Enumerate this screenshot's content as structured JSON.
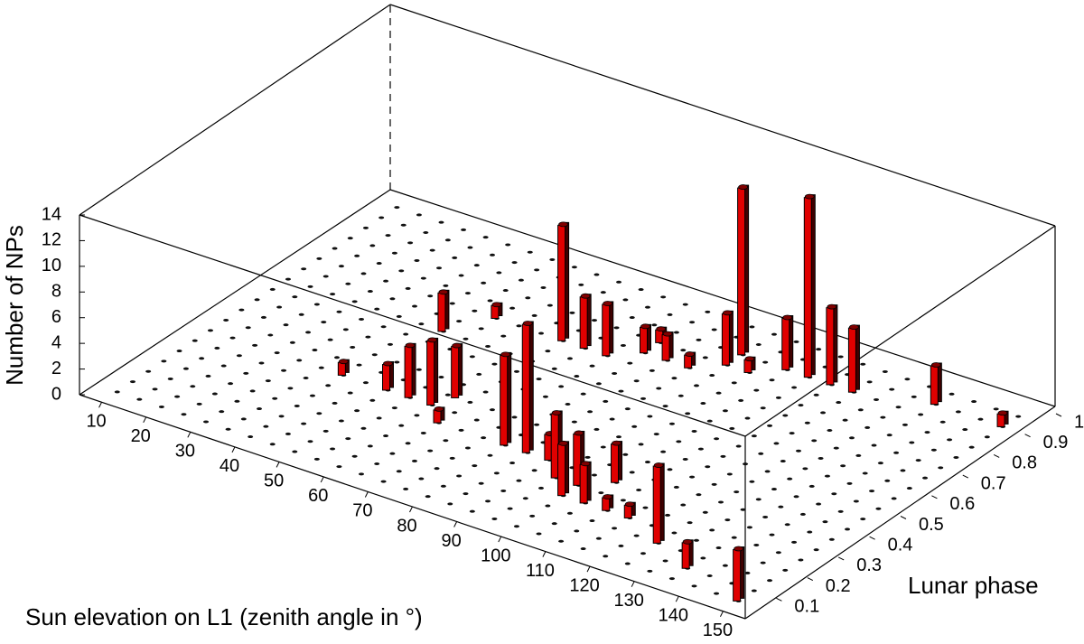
{
  "chart_data": {
    "type": "bar3d",
    "xlabel": "Sun elevation on L1 (zenith angle in °)",
    "ylabel": "Lunar phase",
    "zlabel": "Number of NPs",
    "color": "#e00000",
    "xlim": [
      5,
      155
    ],
    "xticks": [
      10,
      20,
      30,
      40,
      50,
      60,
      70,
      80,
      90,
      100,
      110,
      120,
      130,
      140,
      150
    ],
    "ylim": [
      0,
      1
    ],
    "yticks": [
      0.1,
      0.2,
      0.3,
      0.4,
      0.5,
      0.6,
      0.7,
      0.8,
      0.9,
      1
    ],
    "zlim": [
      0,
      14
    ],
    "zticks": [
      0,
      2,
      4,
      6,
      8,
      10,
      12,
      14
    ],
    "x": [
      40,
      50,
      55,
      60,
      45,
      62,
      65,
      50,
      80,
      85,
      65,
      95,
      90,
      100,
      100,
      105,
      105,
      70,
      75,
      110,
      115,
      80,
      80,
      85,
      125,
      90,
      135,
      95,
      95,
      100,
      150,
      105,
      110,
      115,
      120,
      135,
      150
    ],
    "y": [
      0.35,
      0.35,
      0.35,
      0.35,
      0.6,
      0.4,
      0.3,
      0.7,
      0.3,
      0.3,
      0.7,
      0.25,
      0.3,
      0.2,
      0.25,
      0.2,
      0.3,
      0.7,
      0.7,
      0.2,
      0.2,
      0.75,
      0.8,
      0.75,
      0.15,
      0.75,
      0.1,
      0.8,
      0.85,
      0.8,
      0.05,
      0.85,
      0.85,
      0.85,
      0.85,
      0.9,
      0.9
    ],
    "values": [
      1,
      2,
      4,
      5,
      3,
      4,
      1,
      1,
      7,
      10,
      9,
      5,
      2,
      4,
      4,
      3,
      3,
      4,
      4,
      1,
      1,
      2,
      1,
      2,
      6,
      1,
      2,
      4,
      13,
      1,
      4,
      4,
      14,
      6,
      5,
      3,
      1
    ]
  }
}
